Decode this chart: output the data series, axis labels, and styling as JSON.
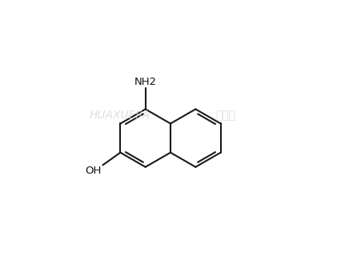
{
  "background_color": "#ffffff",
  "line_color": "#1a1a1a",
  "line_width": 1.5,
  "dbo": 0.012,
  "text_color": "#111111",
  "watermark_color": "#d0d0d0",
  "nh2_label": "NH2",
  "oh_label": "OH",
  "figsize": [
    4.26,
    3.2
  ],
  "dpi": 100,
  "bl": 0.115,
  "jx": 0.5,
  "jy": 0.46
}
